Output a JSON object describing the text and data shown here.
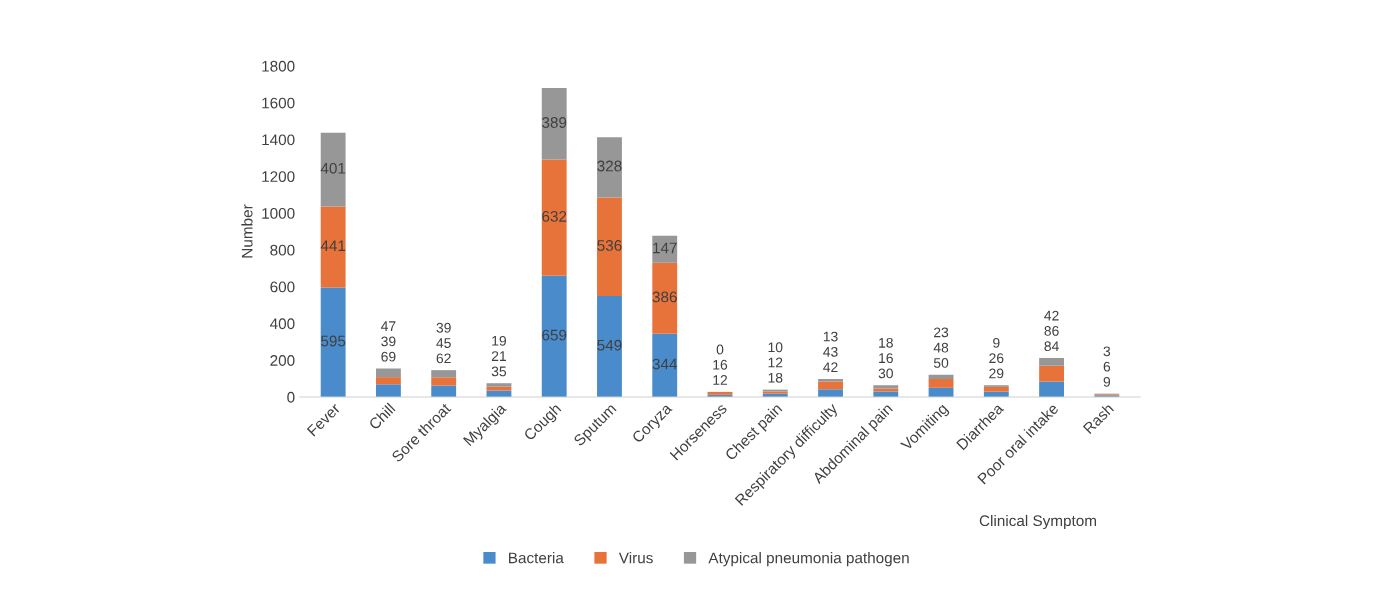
{
  "chart_data": {
    "type": "bar",
    "stacked": true,
    "xlabel": "Clinical Symptom",
    "ylabel": "Number",
    "categories": [
      "Fever",
      "Chill",
      "Sore throat",
      "Myalgia",
      "Cough",
      "Sputum",
      "Coryza",
      "Horseness",
      "Chest pain",
      "Respiratory difficulty",
      "Abdominal pain",
      "Vomiting",
      "Diarrhea",
      "Poor oral intake",
      "Rash"
    ],
    "series": [
      {
        "name": "Bacteria",
        "color": "#4a8ccb",
        "values": [
          595,
          69,
          62,
          35,
          659,
          549,
          344,
          12,
          18,
          42,
          30,
          50,
          29,
          84,
          9
        ]
      },
      {
        "name": "Virus",
        "color": "#e8733a",
        "values": [
          441,
          39,
          45,
          21,
          632,
          536,
          386,
          16,
          12,
          43,
          16,
          48,
          26,
          86,
          6
        ]
      },
      {
        "name": "Atypical pneumonia pathogen",
        "color": "#979797",
        "values": [
          401,
          47,
          39,
          19,
          389,
          328,
          147,
          0,
          10,
          13,
          18,
          23,
          9,
          42,
          3
        ]
      }
    ],
    "ylim": [
      0,
      1800
    ],
    "yticks": [
      0,
      200,
      400,
      600,
      800,
      1000,
      1200,
      1400,
      1600,
      1800
    ],
    "data_labels": true,
    "grid": false,
    "legend": "bottom"
  }
}
